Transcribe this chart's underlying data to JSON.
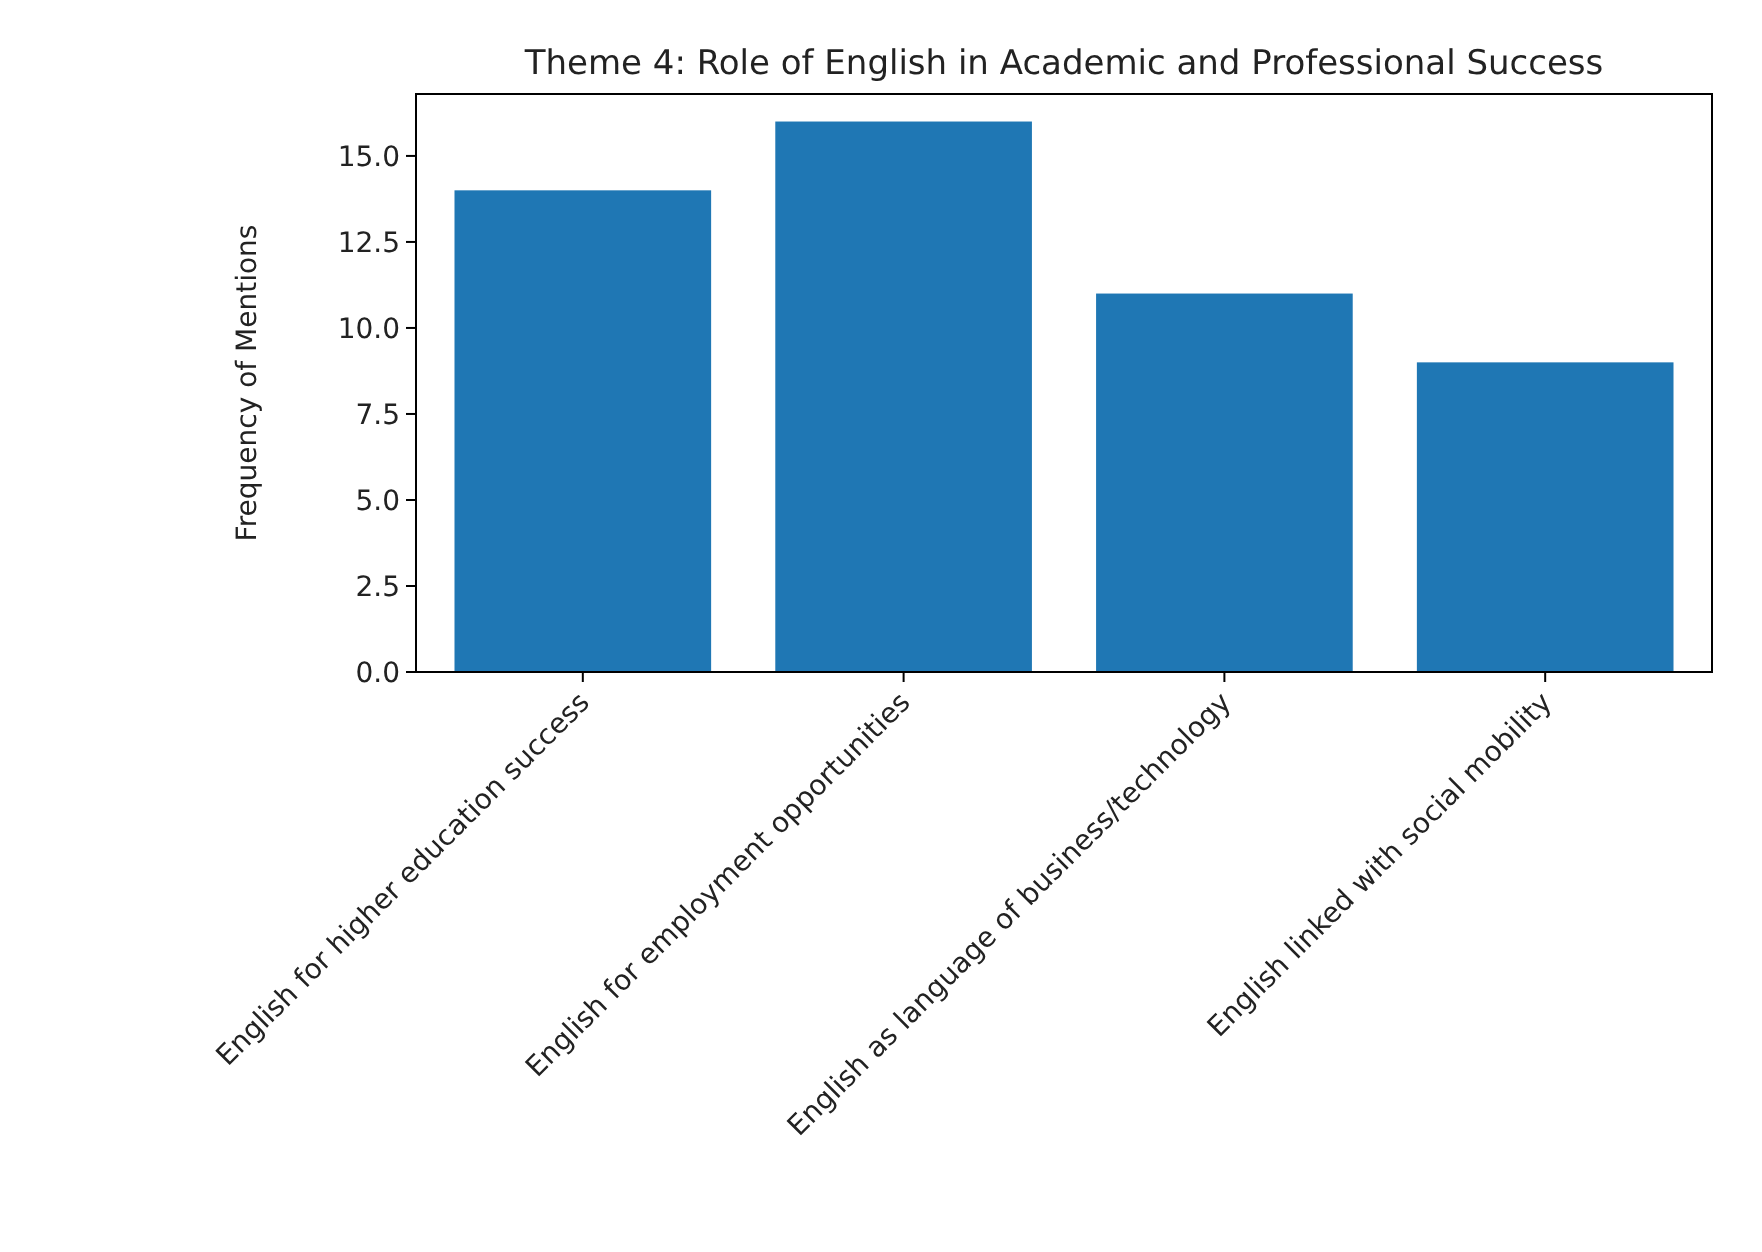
{
  "chart_data": {
    "type": "bar",
    "title": "Theme 4: Role of English in Academic and Professional Success",
    "ylabel": "Frequency of Mentions",
    "categories": [
      "English for higher education success",
      "English for employment opportunities",
      "English as language of business/technology",
      "English linked with social mobility"
    ],
    "values": [
      14,
      16,
      11,
      9
    ],
    "color": "#1f77b4",
    "ylim": [
      0,
      16.8
    ],
    "yticks": [
      {
        "value": 0,
        "label": "0.0"
      },
      {
        "value": 2.5,
        "label": "2.5"
      },
      {
        "value": 5,
        "label": "5.0"
      },
      {
        "value": 7.5,
        "label": "7.5"
      },
      {
        "value": 10,
        "label": "10.0"
      },
      {
        "value": 12.5,
        "label": "12.5"
      },
      {
        "value": 15,
        "label": "15.0"
      }
    ],
    "grid": false
  }
}
